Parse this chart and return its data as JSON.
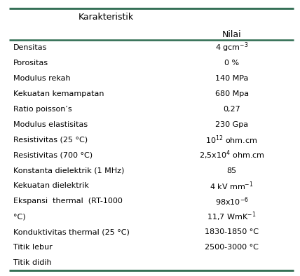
{
  "title_col1": "Karakteristik",
  "title_col2": "Nilai",
  "rows": [
    [
      "Densitas",
      "4 gcm$^{-3}$"
    ],
    [
      "Porositas",
      "0 %"
    ],
    [
      "Modulus rekah",
      "140 MPa"
    ],
    [
      "Kekuatan kemampatan",
      "680 Mpa"
    ],
    [
      "Ratio poisson’s",
      "0,27"
    ],
    [
      "Modulus elastisitas",
      "230 Gpa"
    ],
    [
      "Resistivitas (25 °C)",
      "10$^{12}$ ohm.cm"
    ],
    [
      "Resistivitas (700 °C)",
      "2,5x10$^{4}$ ohm.cm"
    ],
    [
      "Konstanta dielektrik (1 MHz)",
      "85"
    ],
    [
      "Kekuatan dielektrik",
      "4 kV mm$^{-1}$"
    ],
    [
      "Ekspansi  thermal  (RT-1000\n°C)",
      "98x10$^{-6}$\n11,7 WmK$^{-1}$"
    ],
    [
      "Konduktivitas thermal (25 °C)",
      "1830-1850 °C"
    ],
    [
      "Titik lebur",
      "2500-3000 °C"
    ],
    [
      "Titik didih",
      ""
    ]
  ],
  "border_color": "#2d6a4f",
  "bg_color": "#ffffff",
  "text_color": "#000000",
  "fontsize": 8.0,
  "header_fontsize": 9.0
}
